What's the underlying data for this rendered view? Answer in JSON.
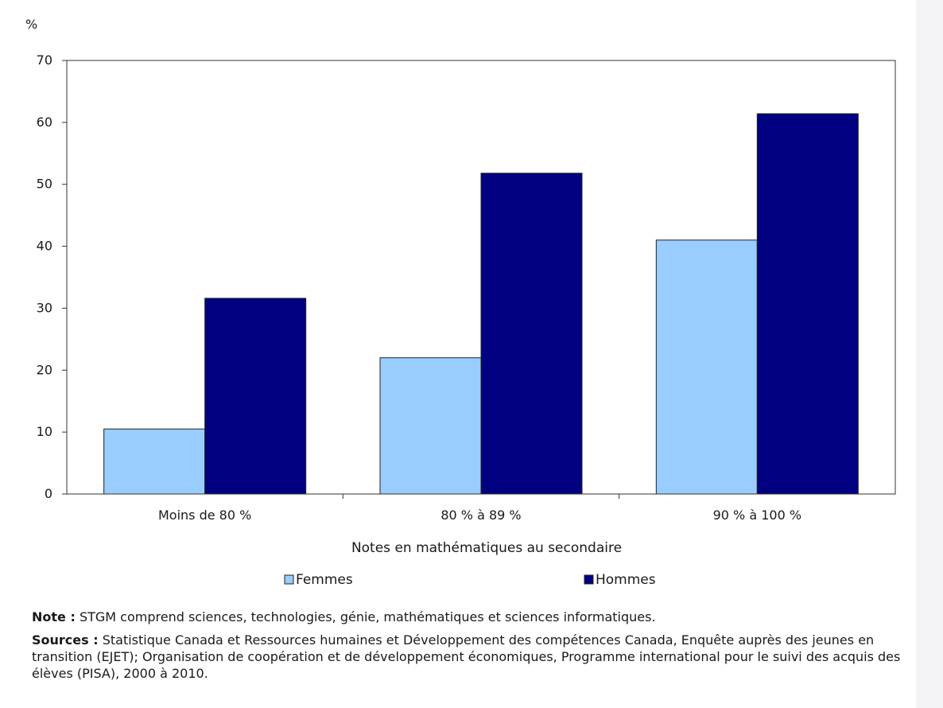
{
  "chart_data": {
    "type": "bar",
    "unit_label": "%",
    "xlabel": "Notes en mathématiques au secondaire",
    "ylabel": "",
    "ylim": [
      0,
      70
    ],
    "yticks": [
      0,
      10,
      20,
      30,
      40,
      50,
      60,
      70
    ],
    "grid": false,
    "legend_position": "bottom",
    "categories": [
      "Moins de 80 %",
      "80 % à 89 %",
      "90 % à 100 %"
    ],
    "series": [
      {
        "name": "Femmes",
        "color": "#99ccff",
        "values": [
          10.5,
          22.0,
          41.0
        ]
      },
      {
        "name": "Hommes",
        "color": "#000080",
        "values": [
          31.6,
          51.8,
          61.4
        ]
      }
    ]
  },
  "notes": {
    "note_key": "Note :",
    "note_text": " STGM comprend sciences, technologies, génie, mathématiques et sciences informatiques.",
    "sources_key": "Sources :",
    "sources_text": " Statistique Canada et Ressources humaines et Développement des compétences Canada, Enquête auprès des jeunes en transition (EJET); Organisation de coopération et de développement économiques, Programme international pour le suivi des acquis des élèves (PISA), 2000 à 2010."
  }
}
